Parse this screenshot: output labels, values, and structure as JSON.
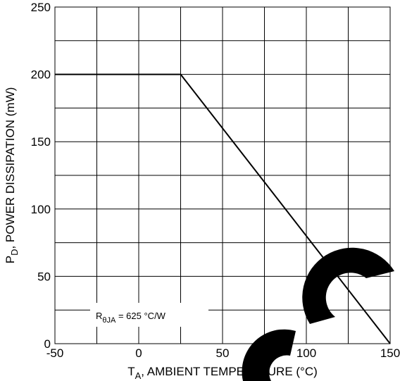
{
  "chart_data": {
    "type": "line",
    "xlabel_main": "T",
    "xlabel_sub": "A",
    "xlabel_rest": ", AMBIENT TEMPERATURE (°C)",
    "ylabel_main": "P",
    "ylabel_sub": "D",
    "ylabel_rest": ", POWER DISSIPATION (mW)",
    "xlim": [
      -50,
      150
    ],
    "ylim": [
      0,
      250
    ],
    "x_ticks": [
      -50,
      0,
      50,
      100,
      150
    ],
    "y_ticks": [
      0,
      50,
      100,
      150,
      200,
      250
    ],
    "x_tick_labels": [
      "-50",
      "0",
      "50",
      "100",
      "150"
    ],
    "y_tick_labels": [
      "0",
      "50",
      "100",
      "150",
      "200",
      "250"
    ],
    "x_minor_step": 25,
    "y_minor_step": 25,
    "grid": true,
    "series": [
      {
        "x": [
          -50,
          25,
          150
        ],
        "y": [
          200,
          200,
          0
        ],
        "color": "#000000"
      }
    ],
    "annotation": {
      "main": "R",
      "sub": "θJA",
      "rest": " = 625 °C/W"
    }
  },
  "watermark": {
    "color": "#000000"
  }
}
